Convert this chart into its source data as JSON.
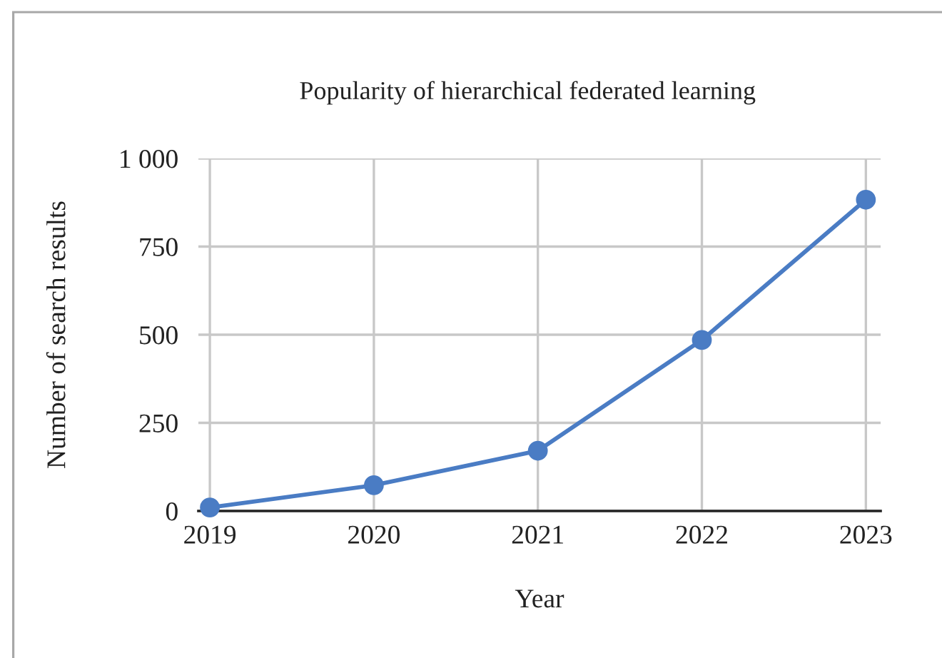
{
  "chart_data": {
    "type": "line",
    "title": "Popularity of hierarchical federated learning",
    "xlabel": "Year",
    "ylabel": "Number of search results",
    "x": [
      2019,
      2020,
      2021,
      2022,
      2023
    ],
    "series": [
      {
        "color": "#4a7cc4",
        "values": [
          10,
          73,
          171,
          485,
          883
        ]
      }
    ],
    "xlim": [
      2018.93,
      2023.09
    ],
    "xticks": [
      2019,
      2020,
      2021,
      2022,
      2023
    ],
    "ylim": [
      0,
      1000
    ],
    "yticks": [
      0,
      250,
      500,
      750,
      {
        "value": 1000,
        "label": "1 000"
      }
    ],
    "grid": true,
    "marker": "circle",
    "line_style": "solid"
  }
}
